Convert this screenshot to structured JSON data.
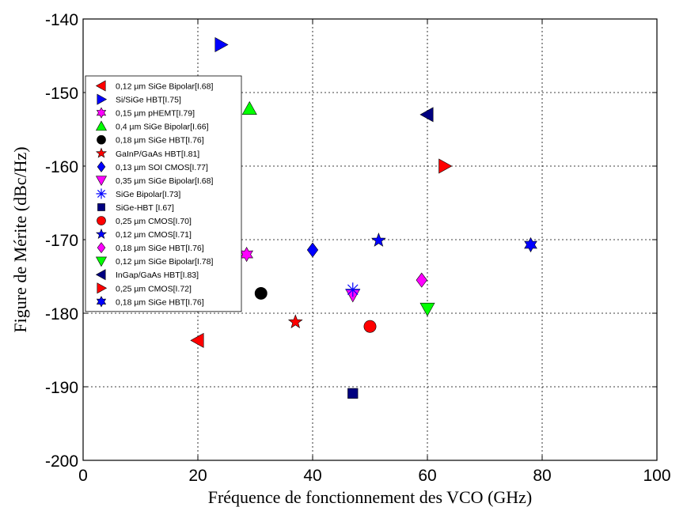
{
  "chart_data": {
    "type": "scatter",
    "xlabel": "Fréquence de fonctionnement des VCO (GHz)",
    "ylabel": "Figure de Mérite (dBc/Hz)",
    "xlim": [
      0,
      100
    ],
    "ylim": [
      -200,
      -140
    ],
    "xticks": [
      "0",
      "20",
      "40",
      "60",
      "80",
      "100"
    ],
    "yticks": [
      "-140",
      "-150",
      "-160",
      "-170",
      "-180",
      "-190",
      "-200"
    ],
    "grid": true,
    "legend_position": "top-left",
    "series": [
      {
        "name": "0,12 µm SiGe Bipolar[I.68]",
        "marker": "triangle-left",
        "color": "#ff0000",
        "points": [
          [
            20,
            -183.7
          ]
        ]
      },
      {
        "name": "Si/SiGe HBT[I.75]",
        "marker": "triangle-right",
        "color": "#0000ff",
        "points": [
          [
            24,
            -143.5
          ]
        ]
      },
      {
        "name": "0,15 µm pHEMT[I.79]",
        "marker": "hexagram",
        "color": "#ff00ff",
        "points": [
          [
            28.5,
            -172
          ]
        ]
      },
      {
        "name": "0,4 µm SiGe Bipolar[I.66]",
        "marker": "triangle-up",
        "color": "#00ff00",
        "points": [
          [
            29,
            -152.2
          ]
        ]
      },
      {
        "name": "0,18 µm SiGe HBT[I.76]",
        "marker": "circle",
        "color": "#000000",
        "points": [
          [
            31,
            -177.3
          ]
        ]
      },
      {
        "name": "GaInP/GaAs HBT[I.81]",
        "marker": "pentagram",
        "color": "#ff0000",
        "points": [
          [
            37,
            -181.2
          ]
        ]
      },
      {
        "name": "0,13 µm SOI CMOS[I.77]",
        "marker": "diamond",
        "color": "#0000ff",
        "points": [
          [
            40,
            -171.4
          ]
        ]
      },
      {
        "name": "0,35 µm SiGe Bipolar[I.68]",
        "marker": "triangle-down",
        "color": "#ff00ff",
        "points": [
          [
            47,
            -177.5
          ]
        ]
      },
      {
        "name": "SiGe Bipolar[I.73]",
        "marker": "asterisk",
        "color": "#0000ff",
        "points": [
          [
            47,
            -176.8
          ]
        ]
      },
      {
        "name": "SiGe-HBT [I.67]",
        "marker": "square",
        "color": "#000080",
        "points": [
          [
            47,
            -190.9
          ]
        ]
      },
      {
        "name": "0,25 µm CMOS[I.70]",
        "marker": "circle",
        "color": "#ff0000",
        "points": [
          [
            50,
            -181.8
          ]
        ]
      },
      {
        "name": "0,12 µm CMOS[I.71]",
        "marker": "pentagram",
        "color": "#0000ff",
        "points": [
          [
            51.5,
            -170.1
          ]
        ]
      },
      {
        "name": "0,18 µm SiGe HBT[I.76]",
        "marker": "diamond",
        "color": "#ff00ff",
        "points": [
          [
            59,
            -175.5
          ]
        ]
      },
      {
        "name": "0,12 µm SiGe Bipolar[I.78]",
        "marker": "triangle-down",
        "color": "#00ff00",
        "points": [
          [
            60,
            -179.4
          ]
        ]
      },
      {
        "name": "InGap/GaAs HBT[I.83]",
        "marker": "triangle-left",
        "color": "#000080",
        "points": [
          [
            60,
            -153
          ]
        ]
      },
      {
        "name": "0,25 µm CMOS[I.72]",
        "marker": "triangle-right",
        "color": "#ff0000",
        "points": [
          [
            63,
            -160
          ]
        ]
      },
      {
        "name": "0,18 µm SiGe HBT[I.76]",
        "marker": "hexagram",
        "color": "#0000ff",
        "points": [
          [
            78,
            -170.7
          ]
        ]
      }
    ]
  }
}
